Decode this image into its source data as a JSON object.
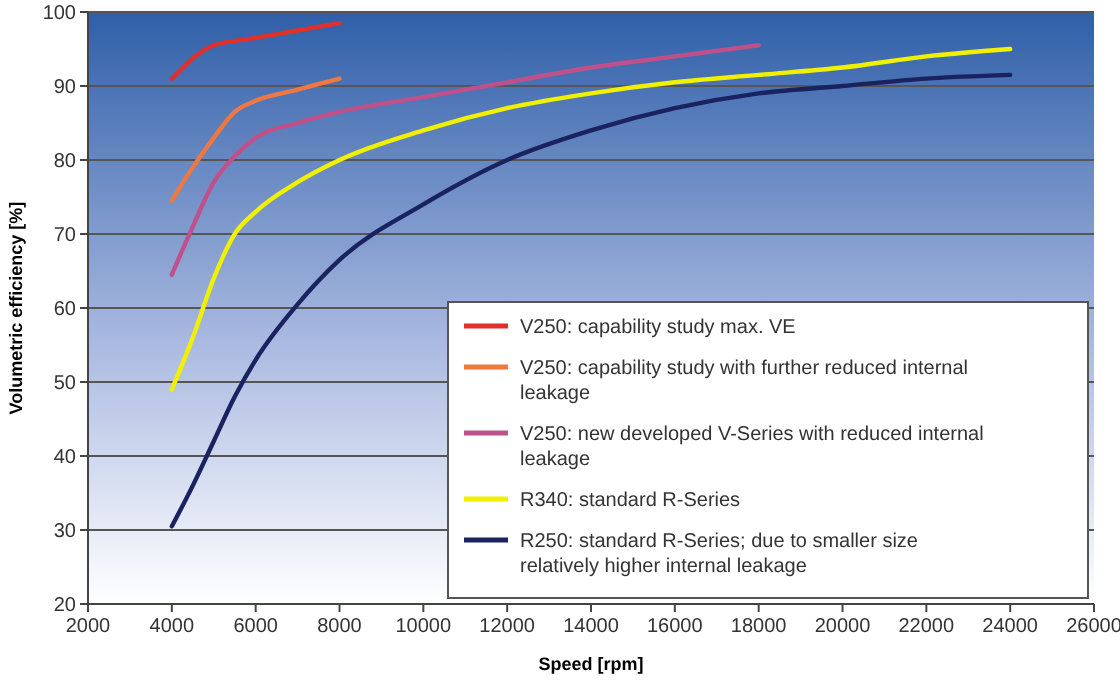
{
  "chart_data": {
    "type": "line",
    "xlabel": "Speed [rpm]",
    "ylabel": "Volumetric efficiency [%]",
    "xlim": [
      2000,
      26000
    ],
    "xticks": [
      2000,
      4000,
      6000,
      8000,
      10000,
      12000,
      14000,
      16000,
      18000,
      20000,
      22000,
      24000,
      26000
    ],
    "ylim": [
      20,
      100
    ],
    "yticks": [
      20,
      30,
      40,
      50,
      60,
      70,
      80,
      90,
      100
    ],
    "grid": "y",
    "legend": "bottom right",
    "marker": "none",
    "line_style": "solid",
    "series": [
      {
        "name": "V250: capability study max. VE",
        "color": "#e0302a",
        "x": [
          4000,
          5000,
          6000,
          7000,
          8000
        ],
        "values": [
          91,
          95.5,
          96.5,
          97.5,
          98.5
        ]
      },
      {
        "name": "V250: capability study with further reduced internal leakage",
        "color": "#f07840",
        "x": [
          4000,
          4500,
          5000,
          5500,
          6000,
          7000,
          8000
        ],
        "values": [
          74.5,
          79,
          83,
          86.5,
          88,
          89.5,
          91
        ]
      },
      {
        "name": "V250: new developed V-Series with reduced internal leakage",
        "color": "#c0508a",
        "x": [
          4000,
          4500,
          5000,
          5500,
          6000,
          7000,
          8000,
          10000,
          12000,
          14000,
          16000,
          18000
        ],
        "values": [
          64.5,
          71,
          77,
          80.5,
          83,
          85,
          86.5,
          88.5,
          90.5,
          92.5,
          94,
          95.5
        ]
      },
      {
        "name": "R340: standard R-Series",
        "color": "#f0f000",
        "x": [
          4000,
          4500,
          5000,
          5500,
          6000,
          7000,
          8000,
          10000,
          12000,
          14000,
          16000,
          18000,
          20000,
          22000,
          24000
        ],
        "values": [
          49,
          56,
          64,
          70,
          73,
          77,
          80,
          84,
          87,
          89,
          90.5,
          91.5,
          92.5,
          94,
          95
        ]
      },
      {
        "name": "R250: standard R-Series; due to smaller size relatively higher internal leakage",
        "color": "#1a2260",
        "x": [
          4000,
          4500,
          5000,
          5500,
          6000,
          7000,
          8000,
          10000,
          12000,
          14000,
          16000,
          18000,
          20000,
          22000,
          24000
        ],
        "values": [
          30.5,
          36,
          42,
          48,
          53,
          60.5,
          66.5,
          74,
          80,
          84,
          87,
          89,
          90,
          91,
          91.5
        ]
      }
    ]
  }
}
